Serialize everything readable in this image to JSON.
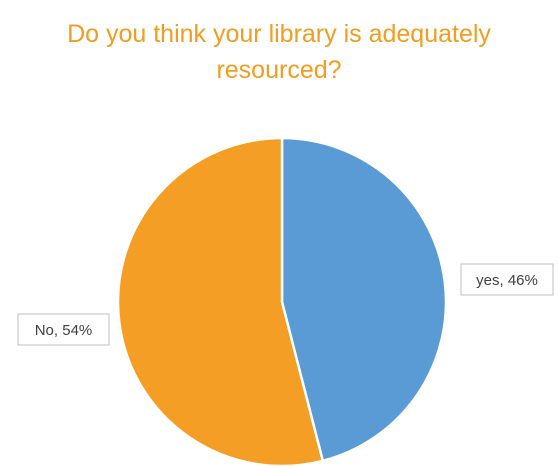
{
  "chart_data": {
    "type": "pie",
    "title_lines": [
      "Do you think your library is adequately",
      "resourced?"
    ],
    "slices": [
      {
        "label": "yes",
        "value": 46,
        "display": "yes, 46%",
        "color": "#5b9bd5"
      },
      {
        "label": "No",
        "value": 54,
        "display": "No, 54%",
        "color": "#f59e26"
      }
    ],
    "legend": false
  }
}
